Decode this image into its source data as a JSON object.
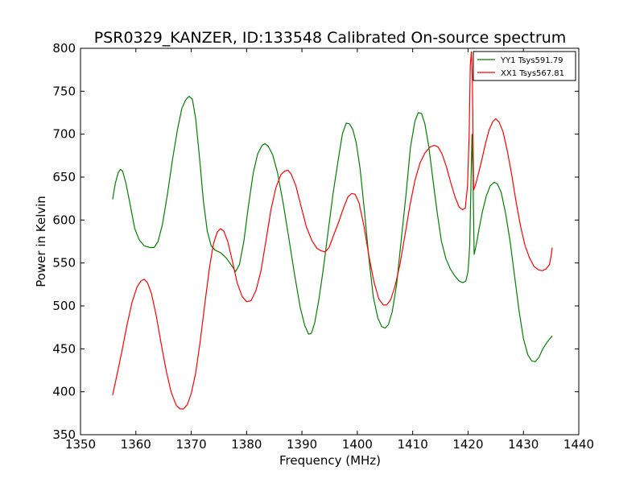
{
  "chart_data": {
    "type": "line",
    "title": "PSR0329_KANZER, ID:133548 Calibrated On-source spectrum",
    "xlabel": "Frequency (MHz)",
    "ylabel": "Power in Kelvin",
    "xlim": [
      1350,
      1440
    ],
    "ylim": [
      350,
      800
    ],
    "xticks": [
      1350,
      1360,
      1370,
      1380,
      1390,
      1400,
      1410,
      1420,
      1430,
      1440
    ],
    "yticks": [
      350,
      400,
      450,
      500,
      550,
      600,
      650,
      700,
      750,
      800
    ],
    "grid": false,
    "legend_position": "top-right",
    "series": [
      {
        "name": "YY1 Tsys591.79",
        "color": "#008000",
        "points": [
          [
            1355.8,
            624
          ],
          [
            1356.3,
            643
          ],
          [
            1356.8,
            655
          ],
          [
            1357.2,
            659
          ],
          [
            1357.6,
            657
          ],
          [
            1358.2,
            643
          ],
          [
            1359.0,
            617
          ],
          [
            1359.8,
            590
          ],
          [
            1360.6,
            577
          ],
          [
            1361.5,
            570
          ],
          [
            1362.5,
            568
          ],
          [
            1363.3,
            568
          ],
          [
            1364.0,
            575
          ],
          [
            1364.8,
            595
          ],
          [
            1365.7,
            630
          ],
          [
            1366.6,
            670
          ],
          [
            1367.5,
            705
          ],
          [
            1368.3,
            730
          ],
          [
            1369.0,
            740
          ],
          [
            1369.6,
            744
          ],
          [
            1370.2,
            741
          ],
          [
            1370.8,
            718
          ],
          [
            1371.5,
            672
          ],
          [
            1372.2,
            622
          ],
          [
            1372.9,
            587
          ],
          [
            1373.6,
            570
          ],
          [
            1374.3,
            565
          ],
          [
            1375.3,
            562
          ],
          [
            1376.3,
            556
          ],
          [
            1377.3,
            547
          ],
          [
            1378.0,
            540
          ],
          [
            1378.7,
            548
          ],
          [
            1379.5,
            575
          ],
          [
            1380.3,
            615
          ],
          [
            1381.2,
            655
          ],
          [
            1382.0,
            677
          ],
          [
            1382.8,
            687
          ],
          [
            1383.3,
            689
          ],
          [
            1383.9,
            686
          ],
          [
            1384.7,
            676
          ],
          [
            1385.6,
            655
          ],
          [
            1386.6,
            620
          ],
          [
            1387.6,
            580
          ],
          [
            1388.7,
            535
          ],
          [
            1389.7,
            498
          ],
          [
            1390.5,
            477
          ],
          [
            1391.2,
            467
          ],
          [
            1391.7,
            468
          ],
          [
            1392.3,
            480
          ],
          [
            1393.0,
            505
          ],
          [
            1393.8,
            540
          ],
          [
            1394.7,
            585
          ],
          [
            1395.6,
            630
          ],
          [
            1396.5,
            668
          ],
          [
            1397.3,
            700
          ],
          [
            1398.0,
            713
          ],
          [
            1398.6,
            712
          ],
          [
            1399.2,
            705
          ],
          [
            1399.8,
            690
          ],
          [
            1400.5,
            660
          ],
          [
            1401.3,
            610
          ],
          [
            1402.1,
            555
          ],
          [
            1402.9,
            510
          ],
          [
            1403.7,
            486
          ],
          [
            1404.4,
            476
          ],
          [
            1405.0,
            474
          ],
          [
            1405.6,
            478
          ],
          [
            1406.3,
            493
          ],
          [
            1407.1,
            525
          ],
          [
            1407.9,
            575
          ],
          [
            1408.8,
            630
          ],
          [
            1409.6,
            685
          ],
          [
            1410.4,
            715
          ],
          [
            1411.0,
            725
          ],
          [
            1411.6,
            724
          ],
          [
            1412.2,
            712
          ],
          [
            1412.9,
            686
          ],
          [
            1413.6,
            650
          ],
          [
            1414.4,
            610
          ],
          [
            1415.2,
            575
          ],
          [
            1416.0,
            555
          ],
          [
            1416.8,
            543
          ],
          [
            1417.6,
            535
          ],
          [
            1418.4,
            529
          ],
          [
            1419.0,
            527
          ],
          [
            1419.6,
            529
          ],
          [
            1420.0,
            540
          ],
          [
            1420.3,
            570
          ],
          [
            1420.5,
            635
          ],
          [
            1420.7,
            700
          ],
          [
            1420.9,
            650
          ],
          [
            1421.1,
            560
          ],
          [
            1421.5,
            572
          ],
          [
            1422.0,
            590
          ],
          [
            1422.6,
            610
          ],
          [
            1423.3,
            628
          ],
          [
            1424.0,
            640
          ],
          [
            1424.7,
            644
          ],
          [
            1425.3,
            642
          ],
          [
            1426.0,
            632
          ],
          [
            1426.8,
            607
          ],
          [
            1427.6,
            575
          ],
          [
            1428.4,
            535
          ],
          [
            1429.2,
            495
          ],
          [
            1430.0,
            462
          ],
          [
            1430.8,
            443
          ],
          [
            1431.5,
            436
          ],
          [
            1432.1,
            435
          ],
          [
            1432.8,
            440
          ],
          [
            1433.5,
            450
          ],
          [
            1434.3,
            458
          ],
          [
            1435.2,
            465
          ]
        ]
      },
      {
        "name": "XX1 Tsys567.81",
        "color": "#ff0000",
        "points": [
          [
            1355.8,
            396
          ],
          [
            1356.6,
            420
          ],
          [
            1357.5,
            448
          ],
          [
            1358.4,
            478
          ],
          [
            1359.3,
            504
          ],
          [
            1360.2,
            522
          ],
          [
            1360.9,
            529
          ],
          [
            1361.5,
            531
          ],
          [
            1362.1,
            527
          ],
          [
            1362.8,
            515
          ],
          [
            1363.7,
            488
          ],
          [
            1364.6,
            455
          ],
          [
            1365.5,
            424
          ],
          [
            1366.4,
            399
          ],
          [
            1367.3,
            384
          ],
          [
            1368.0,
            380
          ],
          [
            1368.6,
            380
          ],
          [
            1369.3,
            385
          ],
          [
            1370.0,
            398
          ],
          [
            1370.8,
            422
          ],
          [
            1371.6,
            458
          ],
          [
            1372.5,
            505
          ],
          [
            1373.3,
            545
          ],
          [
            1374.0,
            572
          ],
          [
            1374.7,
            586
          ],
          [
            1375.3,
            590
          ],
          [
            1375.9,
            587
          ],
          [
            1376.6,
            575
          ],
          [
            1377.4,
            553
          ],
          [
            1378.3,
            527
          ],
          [
            1379.2,
            511
          ],
          [
            1380.0,
            505
          ],
          [
            1380.8,
            506
          ],
          [
            1381.7,
            518
          ],
          [
            1382.6,
            541
          ],
          [
            1383.5,
            576
          ],
          [
            1384.4,
            612
          ],
          [
            1385.3,
            638
          ],
          [
            1386.2,
            653
          ],
          [
            1386.9,
            657
          ],
          [
            1387.5,
            658
          ],
          [
            1388.1,
            653
          ],
          [
            1388.9,
            640
          ],
          [
            1389.8,
            617
          ],
          [
            1390.8,
            592
          ],
          [
            1391.8,
            576
          ],
          [
            1392.7,
            567
          ],
          [
            1393.5,
            564
          ],
          [
            1394.2,
            563
          ],
          [
            1394.9,
            568
          ],
          [
            1395.7,
            582
          ],
          [
            1396.6,
            597
          ],
          [
            1397.5,
            614
          ],
          [
            1398.3,
            627
          ],
          [
            1399.0,
            631
          ],
          [
            1399.6,
            630
          ],
          [
            1400.3,
            620
          ],
          [
            1401.2,
            593
          ],
          [
            1402.1,
            558
          ],
          [
            1403.0,
            528
          ],
          [
            1403.9,
            508
          ],
          [
            1404.7,
            501
          ],
          [
            1405.3,
            501
          ],
          [
            1406.0,
            507
          ],
          [
            1406.8,
            523
          ],
          [
            1407.7,
            548
          ],
          [
            1408.6,
            582
          ],
          [
            1409.5,
            617
          ],
          [
            1410.4,
            646
          ],
          [
            1411.3,
            666
          ],
          [
            1412.2,
            678
          ],
          [
            1413.1,
            685
          ],
          [
            1413.9,
            687
          ],
          [
            1414.6,
            685
          ],
          [
            1415.3,
            677
          ],
          [
            1416.1,
            662
          ],
          [
            1416.9,
            643
          ],
          [
            1417.7,
            626
          ],
          [
            1418.4,
            615
          ],
          [
            1419.0,
            612
          ],
          [
            1419.5,
            614
          ],
          [
            1419.9,
            640
          ],
          [
            1420.2,
            700
          ],
          [
            1420.4,
            780
          ],
          [
            1420.6,
            796
          ],
          [
            1420.8,
            760
          ],
          [
            1421.0,
            635
          ],
          [
            1421.3,
            640
          ],
          [
            1421.8,
            652
          ],
          [
            1422.4,
            668
          ],
          [
            1423.1,
            688
          ],
          [
            1423.8,
            705
          ],
          [
            1424.5,
            715
          ],
          [
            1425.0,
            718
          ],
          [
            1425.6,
            714
          ],
          [
            1426.3,
            703
          ],
          [
            1427.1,
            680
          ],
          [
            1427.9,
            652
          ],
          [
            1428.7,
            620
          ],
          [
            1429.5,
            592
          ],
          [
            1430.3,
            570
          ],
          [
            1431.1,
            556
          ],
          [
            1431.9,
            546
          ],
          [
            1432.7,
            542
          ],
          [
            1433.4,
            541
          ],
          [
            1434.1,
            543
          ],
          [
            1434.7,
            548
          ],
          [
            1435.0,
            558
          ],
          [
            1435.2,
            568
          ]
        ]
      }
    ]
  }
}
